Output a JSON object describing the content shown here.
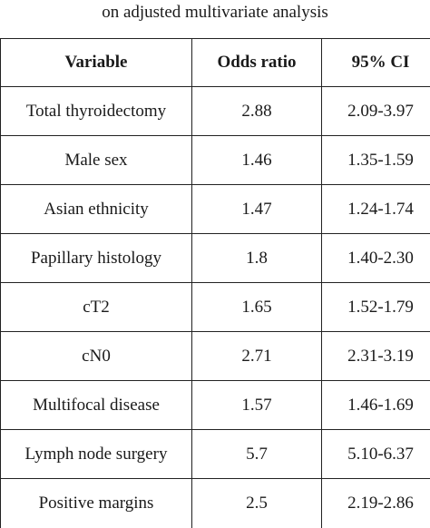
{
  "caption": "on adjusted multivariate analysis",
  "table": {
    "headers": [
      "Variable",
      "Odds ratio",
      "95% CI"
    ],
    "rows": [
      {
        "variable": "Total thyroidectomy",
        "odds_ratio": "2.88",
        "ci": "2.09-3.97"
      },
      {
        "variable": "Male sex",
        "odds_ratio": "1.46",
        "ci": "1.35-1.59"
      },
      {
        "variable": "Asian ethnicity",
        "odds_ratio": "1.47",
        "ci": "1.24-1.74"
      },
      {
        "variable": "Papillary histology",
        "odds_ratio": "1.8",
        "ci": "1.40-2.30"
      },
      {
        "variable": "cT2",
        "odds_ratio": "1.65",
        "ci": "1.52-1.79"
      },
      {
        "variable": "cN0",
        "odds_ratio": "2.71",
        "ci": "2.31-3.19"
      },
      {
        "variable": "Multifocal disease",
        "odds_ratio": "1.57",
        "ci": "1.46-1.69"
      },
      {
        "variable": "Lymph node surgery",
        "odds_ratio": "5.7",
        "ci": "5.10-6.37"
      },
      {
        "variable": "Positive margins",
        "odds_ratio": "2.5",
        "ci": "2.19-2.86"
      }
    ]
  }
}
